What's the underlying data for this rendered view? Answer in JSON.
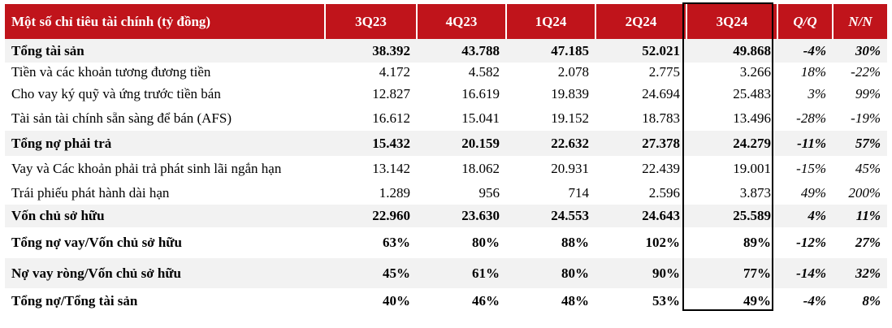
{
  "table": {
    "headers": [
      "Một số chỉ tiêu tài chính (tỷ đồng)",
      "3Q23",
      "4Q23",
      "1Q24",
      "2Q24",
      "3Q24",
      "Q/Q",
      "N/N"
    ],
    "rows": [
      {
        "label": "Tổng tài sản",
        "values": [
          "38.392",
          "43.788",
          "47.185",
          "52.021",
          "49.868"
        ],
        "qoq": "-4%",
        "yoy": "30%",
        "bold": true,
        "shaded": true,
        "height": 29
      },
      {
        "label": "Tiền và các khoản tương đương tiền",
        "values": [
          "4.172",
          "4.582",
          "2.078",
          "2.775",
          "3.266"
        ],
        "qoq": "18%",
        "yoy": "-22%",
        "bold": false,
        "shaded": false,
        "height": 24
      },
      {
        "label": "Cho vay ký quỹ và ứng trước tiền bán",
        "values": [
          "12.827",
          "16.619",
          "19.839",
          "24.694",
          "25.483"
        ],
        "qoq": "3%",
        "yoy": "99%",
        "bold": false,
        "shaded": false,
        "height": 30
      },
      {
        "label": "Tài sản tài chính sẵn sàng để bán (AFS)",
        "values": [
          "16.612",
          "15.041",
          "19.152",
          "18.783",
          "13.496"
        ],
        "qoq": "-28%",
        "yoy": "-19%",
        "bold": false,
        "shaded": false,
        "height": 30
      },
      {
        "label": "Tổng nợ phải trả",
        "values": [
          "15.432",
          "20.159",
          "22.632",
          "27.378",
          "24.279"
        ],
        "qoq": "-11%",
        "yoy": "57%",
        "bold": true,
        "shaded": true,
        "height": 31
      },
      {
        "label": "Vay và Các khoản phải trả phát sinh lãi ngắn hạn",
        "values": [
          "13.142",
          "18.062",
          "20.931",
          "22.439",
          "19.001"
        ],
        "qoq": "-15%",
        "yoy": "45%",
        "bold": false,
        "shaded": false,
        "height": 32
      },
      {
        "label": "Trái phiếu phát hành dài hạn",
        "values": [
          "1.289",
          "956",
          "714",
          "2.596",
          "3.873"
        ],
        "qoq": "49%",
        "yoy": "200%",
        "bold": false,
        "shaded": false,
        "height": 28
      },
      {
        "label": "Vốn chủ sở hữu",
        "values": [
          "22.960",
          "23.630",
          "24.553",
          "24.643",
          "25.589"
        ],
        "qoq": "4%",
        "yoy": "11%",
        "bold": true,
        "shaded": true,
        "height": 28
      },
      {
        "label": "Tổng nợ vay/Vốn chủ sở hữu",
        "values": [
          "63%",
          "80%",
          "88%",
          "102%",
          "89%"
        ],
        "qoq": "-12%",
        "yoy": "27%",
        "bold": true,
        "shaded": false,
        "height": 38
      },
      {
        "label": "Nợ vay ròng/Vốn chủ sở hữu",
        "values": [
          "45%",
          "61%",
          "80%",
          "90%",
          "77%"
        ],
        "qoq": "-14%",
        "yoy": "32%",
        "bold": true,
        "shaded": true,
        "height": 37
      },
      {
        "label": "Tổng nợ/Tổng tài sản",
        "values": [
          "40%",
          "46%",
          "48%",
          "53%",
          "49%"
        ],
        "qoq": "-4%",
        "yoy": "8%",
        "bold": true,
        "shaded": false,
        "height": 31
      }
    ]
  },
  "colors": {
    "header_bg": "#c0141b",
    "header_text": "#ffffff",
    "shaded_row": "#f2f2f2",
    "highlight_border": "#000000"
  }
}
